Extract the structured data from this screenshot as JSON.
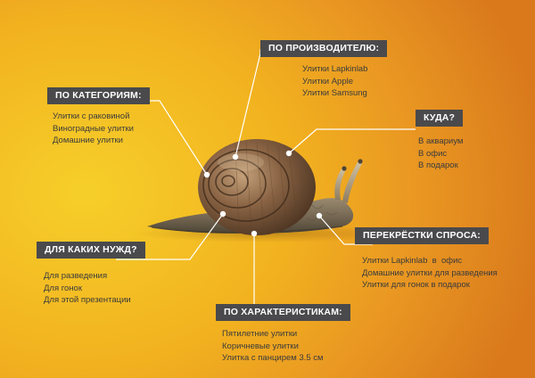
{
  "groups": {
    "manufacturer": {
      "title": "ПО ПРОИЗВОДИТЕЛЮ:",
      "items": [
        "Улитки Lapkinlab",
        "Улитки Apple",
        "Улитки Samsung"
      ]
    },
    "categories": {
      "title": "ПО КАТЕГОРИЯМ:",
      "items": [
        "Улитки с раковиной",
        "Виноградные улитки",
        "Домашние улитки"
      ]
    },
    "where": {
      "title": "КУДА?",
      "items": [
        "В аквариум",
        "В офис",
        "В подарок"
      ]
    },
    "needs": {
      "title": "ДЛЯ КАКИХ НУЖД?",
      "items": [
        "Для разведения",
        "Для гонок",
        "Для этой презентации"
      ]
    },
    "demand": {
      "title": "ПЕРЕКРЁСТКИ СПРОСА:",
      "items": [
        "Улитки Lapkinlab  в  офис",
        "Домашние улитки для разведения",
        "Улитки для гонок в подарок"
      ]
    },
    "characteristics": {
      "title": "ПО ХАРАКТЕРИСТИКАМ:",
      "items": [
        "Пятилетние улитки",
        "Коричневые улитки",
        "Улитка с панцирем 3.5 см"
      ]
    }
  },
  "colors": {
    "background_light": "#f6cf2a",
    "background_dark": "#d9791c",
    "heading_bg": "#4a4a4c",
    "heading_text": "#ffffff",
    "item_text": "#3b3b3b",
    "connector": "#ffffff"
  }
}
